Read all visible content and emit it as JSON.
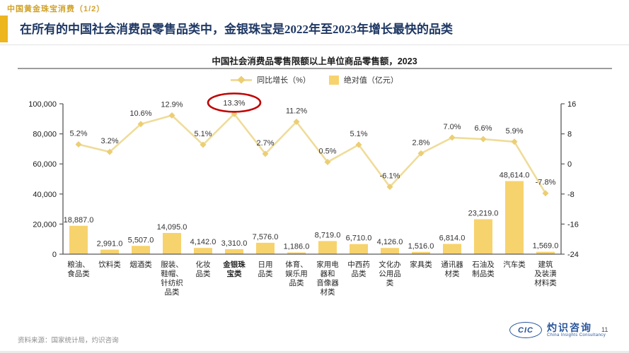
{
  "page": {
    "eyebrow": "中国黄金珠宝消费（1/2）",
    "title": "在所有的中国社会消费品零售品类中，金银珠宝是2022年至2023年增长最快的品类",
    "source": "资料来源：国家统计局，灼识咨询",
    "page_number": "11"
  },
  "logo": {
    "abbr": "CIC",
    "name": "灼识咨询",
    "tagline": "China Insights Consultancy"
  },
  "colors": {
    "bar": "#f7d36e",
    "line": "#efdc9a",
    "marker": "#ecce74",
    "label": "#333333",
    "axis": "#595959",
    "category": "#262626",
    "navy": "#1f3864",
    "accent_gold": "#edb51e",
    "highlight_red": "#c00000"
  },
  "chart_data": {
    "type": "bar",
    "subtype": "combo-bar-line",
    "title": "中国社会消费品零售限额以上单位商品零售额，2023",
    "legend": [
      {
        "label": "同比增长（%）",
        "marker": "line-diamond",
        "color": "#efdc9a"
      },
      {
        "label": "绝对值（亿元）",
        "marker": "square",
        "color": "#f7d36e"
      }
    ],
    "legend_position": "top-center",
    "grid": false,
    "categories": [
      [
        "粮油、",
        "食品类"
      ],
      [
        "饮料类"
      ],
      [
        "烟酒类"
      ],
      [
        "服装、",
        "鞋帽、",
        "针纺织",
        "品类"
      ],
      [
        "化妆",
        "品类"
      ],
      [
        "金银珠",
        "宝类"
      ],
      [
        "日用",
        "品类"
      ],
      [
        "体育、",
        "娱乐用",
        "品类"
      ],
      [
        "家用电",
        "器和",
        "音像器",
        "材类"
      ],
      [
        "中西药",
        "品类"
      ],
      [
        "文化办",
        "公用品",
        "类"
      ],
      [
        "家具类"
      ],
      [
        "通讯器",
        "材类"
      ],
      [
        "石油及",
        "制品类"
      ],
      [
        "汽车类"
      ],
      [
        "建筑",
        "及装潢",
        "材料类"
      ]
    ],
    "bold_category_index": 5,
    "series": [
      {
        "name": "绝对值（亿元）",
        "type": "bar",
        "axis": "left",
        "values": [
          18887.0,
          2991.0,
          5507.0,
          14095.0,
          4142.0,
          3310.0,
          7576.0,
          1186.0,
          8719.0,
          6710.0,
          4126.0,
          1516.0,
          6814.0,
          23219.0,
          48614.0,
          1569.0
        ],
        "labels": [
          "18,887.0",
          "2,991.0",
          "5,507.0",
          "14,095.0",
          "4,142.0",
          "3,310.0",
          "7,576.0",
          "1,186.0",
          "8,719.0",
          "6,710.0",
          "4,126.0",
          "1,516.0",
          "6,814.0",
          "23,219.0",
          "48,614.0",
          "1,569.0"
        ]
      },
      {
        "name": "同比增长（%）",
        "type": "line",
        "axis": "right",
        "values": [
          5.2,
          3.2,
          10.6,
          12.9,
          5.1,
          13.3,
          2.7,
          11.2,
          0.5,
          5.1,
          -6.1,
          2.8,
          7.0,
          6.6,
          5.9,
          -7.8
        ],
        "labels": [
          "5.2%",
          "3.2%",
          "10.6%",
          "12.9%",
          "5.1%",
          "13.3%",
          "2.7%",
          "11.2%",
          "0.5%",
          "5.1%",
          "-6.1%",
          "2.8%",
          "7.0%",
          "6.6%",
          "5.9%",
          "-7.8%"
        ]
      }
    ],
    "left_axis": {
      "min": 0,
      "max": 100000,
      "tick_values": [
        0,
        20000,
        40000,
        60000,
        80000,
        100000
      ],
      "tick_labels": [
        "0",
        "20,000",
        "40,000",
        "60,000",
        "80,000",
        "100,000"
      ]
    },
    "right_axis": {
      "min": -24,
      "max": 16,
      "tick_values": [
        -24,
        -16,
        -8,
        0,
        8,
        16
      ],
      "tick_labels": [
        "-24",
        "-16",
        "-8",
        "0",
        "8",
        "16"
      ]
    },
    "highlight": {
      "series": 1,
      "index": 5,
      "shape": "ellipse",
      "color": "#c00000"
    }
  }
}
